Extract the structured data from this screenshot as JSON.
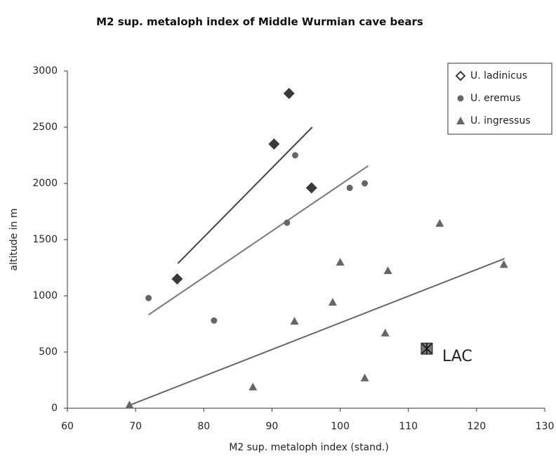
{
  "chart_data": {
    "type": "scatter",
    "title": "M2 sup. metaloph index of Middle Wurmian cave bears",
    "xlabel": "M2 sup. metaloph index (stand.)",
    "ylabel": "altitude in m",
    "xlim": [
      60,
      130
    ],
    "xticks": [
      60,
      70,
      80,
      90,
      100,
      110,
      120,
      130
    ],
    "ylim": [
      0,
      3000
    ],
    "yticks": [
      0,
      500,
      1000,
      1500,
      2000,
      2500,
      3000
    ],
    "grid": false,
    "legend": "upper right",
    "series": [
      {
        "name": "U. ladinicus",
        "marker": "diamond",
        "color": "#3a3a3a",
        "x": [
          92.5,
          90.3,
          95.8,
          76.1
        ],
        "values": [
          2800,
          2350,
          1960,
          1150
        ]
      },
      {
        "name": "U. eremus",
        "marker": "circle",
        "color": "#666666",
        "x": [
          93.4,
          101.4,
          103.6,
          92.2,
          71.9,
          81.5
        ],
        "values": [
          2250,
          1960,
          2000,
          1650,
          980,
          780
        ]
      },
      {
        "name": "U. ingressus",
        "marker": "triangle",
        "color": "#666666",
        "x": [
          69.1,
          87.2,
          93.3,
          98.9,
          100.0,
          103.6,
          106.6,
          107.0,
          114.6,
          124.0
        ],
        "values": [
          30,
          190,
          775,
          944,
          1300,
          270,
          670,
          1225,
          1645,
          1280
        ]
      }
    ],
    "lines": [
      {
        "color": "#444444",
        "x": [
          76.2,
          95.9
        ],
        "values": [
          1288,
          2500
        ]
      },
      {
        "color": "#777777",
        "x": [
          71.9,
          104.1
        ],
        "values": [
          831,
          2156
        ]
      },
      {
        "color": "#666666",
        "x": [
          69.3,
          124.1
        ],
        "values": [
          31,
          1331
        ]
      }
    ],
    "annotations": [
      {
        "text": "LAC",
        "x": 112.7,
        "y": 530
      }
    ]
  }
}
